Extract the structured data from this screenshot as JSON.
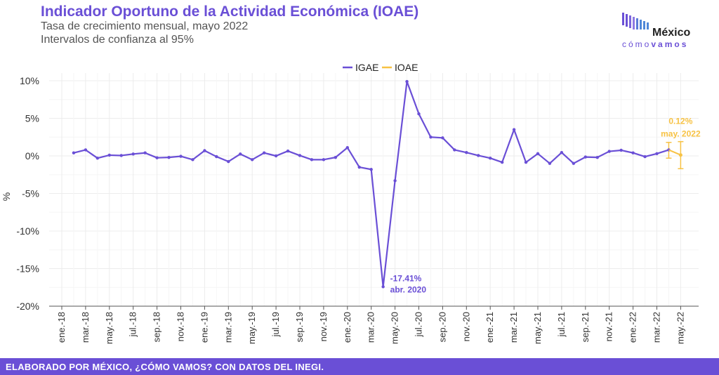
{
  "chart_data": {
    "type": "line",
    "title": "Indicador Oportuno de la Actividad Económica (IOAE)",
    "subtitle_1": "Tasa de crecimiento mensual, mayo 2022",
    "subtitle_2": "Intervalos de confianza al 95%",
    "ylabel": "%",
    "ylim": [
      -20,
      10
    ],
    "yticks": [
      10,
      5,
      0,
      -5,
      -10,
      -15,
      -20
    ],
    "ytick_labels": [
      "10%",
      "5%",
      "0%",
      "-5%",
      "-10%",
      "-15%",
      "-20%"
    ],
    "xtick_labels": [
      "ene.-18",
      "mar.-18",
      "may.-18",
      "jul.-18",
      "sep.-18",
      "nov.-18",
      "ene.-19",
      "mar.-19",
      "may.-19",
      "jul.-19",
      "sep.-19",
      "nov.-19",
      "ene.-20",
      "mar.-20",
      "may.-20",
      "jul.-20",
      "sep.-20",
      "nov.-20",
      "ene.-21",
      "mar.-21",
      "may.-21",
      "jul.-21",
      "sep.-21",
      "nov.-21",
      "ene.-22",
      "mar.-22",
      "may.-22"
    ],
    "grid": true,
    "legend_position": "top-center",
    "series": [
      {
        "name": "IGAE",
        "color": "#6a4fd6",
        "start_month_index": 1,
        "values": [
          0.4,
          0.8,
          -0.3,
          0.1,
          0.05,
          0.25,
          0.4,
          -0.25,
          -0.2,
          -0.05,
          -0.5,
          0.7,
          -0.1,
          -0.75,
          0.25,
          -0.5,
          0.4,
          0.0,
          0.65,
          0.05,
          -0.5,
          -0.5,
          -0.2,
          1.1,
          -1.5,
          -1.8,
          -17.41,
          -3.3,
          9.9,
          5.6,
          2.5,
          2.4,
          0.8,
          0.45,
          0.05,
          -0.3,
          -0.85,
          3.5,
          -0.85,
          0.3,
          -1.0,
          0.45,
          -1.0,
          -0.15,
          -0.2,
          0.6,
          0.75,
          0.4,
          -0.1,
          0.3,
          0.8
        ]
      },
      {
        "name": "IOAE",
        "color": "#f7c244",
        "start_month_index": 52,
        "values": [
          0.12
        ],
        "ci_lower": [
          -1.7
        ],
        "ci_upper": [
          1.9
        ]
      }
    ],
    "ioae_prev_ci": {
      "month_index": 51,
      "lower": -0.3,
      "upper": 1.8
    },
    "annotations": [
      {
        "value_label": "-17.41%",
        "date_label": "abr. 2020",
        "series": "IGAE"
      },
      {
        "value_label": "0.12%",
        "date_label": "may. 2022",
        "series": "IOAE"
      }
    ]
  },
  "logo": {
    "main": "México",
    "sub_prefix": "cómo",
    "sub_bold": "vamos"
  },
  "footer": {
    "text": "ELABORADO POR MÉXICO, ¿CÓMO VAMOS? CON DATOS DEL INEGI."
  }
}
